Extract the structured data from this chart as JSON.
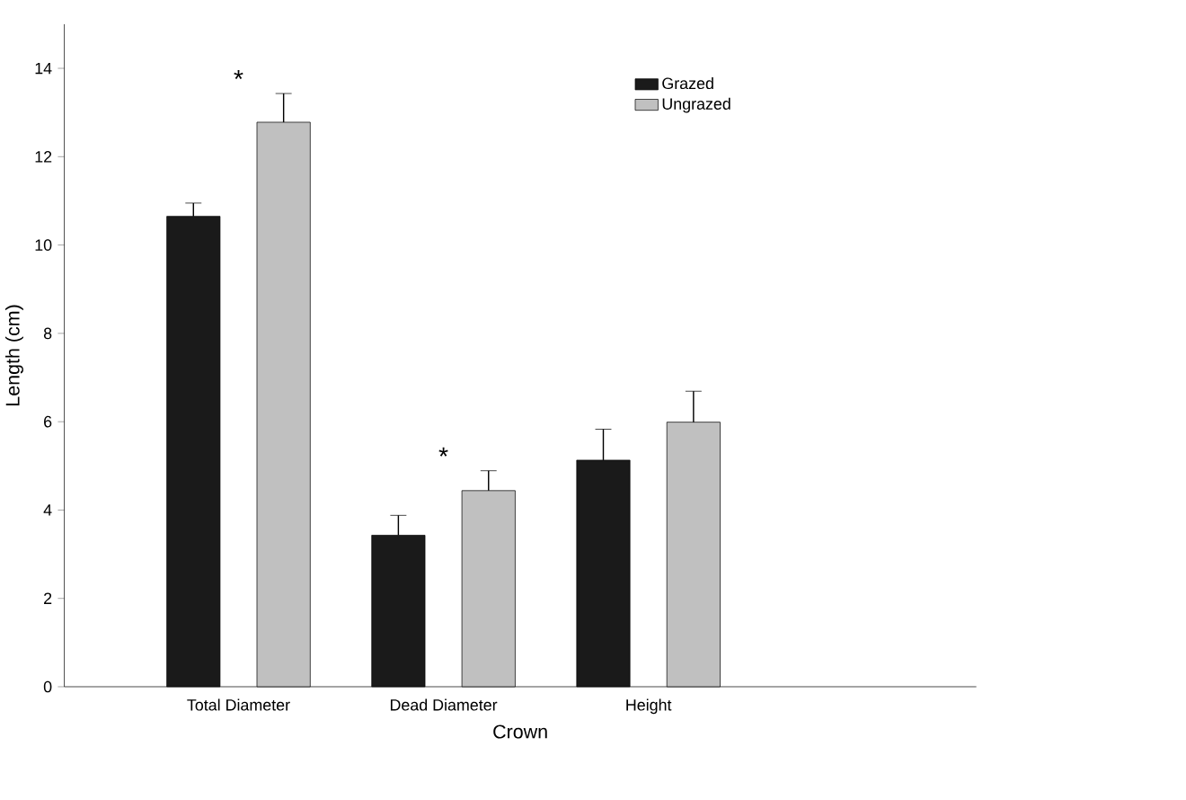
{
  "chart_data": {
    "type": "bar",
    "xlabel": "Crown",
    "ylabel": "Length (cm)",
    "categories": [
      "Total Diameter",
      "Dead Diameter",
      "Height"
    ],
    "series": [
      {
        "name": "Grazed",
        "color": "#1a1a1a",
        "values": [
          10.65,
          3.43,
          5.13
        ],
        "errors": [
          0.3,
          0.45,
          0.7
        ]
      },
      {
        "name": "Ungrazed",
        "color": "#c0c0c0",
        "values": [
          12.78,
          4.44,
          5.99
        ],
        "errors": [
          0.65,
          0.45,
          0.7
        ]
      }
    ],
    "ylim": [
      0,
      15
    ],
    "yticks": [
      0,
      2,
      4,
      6,
      8,
      10,
      12,
      14
    ],
    "legend": "top right",
    "annotations": [
      "*",
      "*"
    ]
  }
}
